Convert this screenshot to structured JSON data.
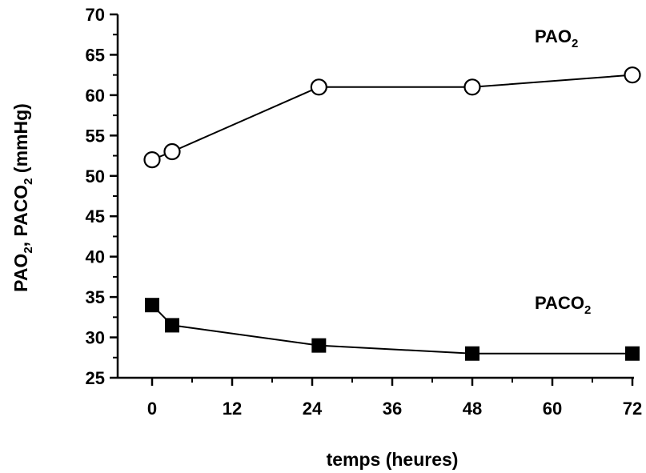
{
  "chart_data": {
    "type": "line",
    "title": "",
    "xlabel": "temps (heures)",
    "ylabel_parts": [
      "PAO",
      "2",
      ", PACO",
      "2",
      " (mmHg)"
    ],
    "x_ticks": [
      0,
      12,
      24,
      36,
      48,
      60,
      72
    ],
    "y_ticks": [
      25,
      30,
      35,
      40,
      45,
      50,
      55,
      60,
      65,
      70
    ],
    "xlim": [
      0,
      72
    ],
    "ylim": [
      25,
      70
    ],
    "grid": false,
    "series": [
      {
        "name_parts": [
          "PAO",
          "2"
        ],
        "marker": "open-circle",
        "color": "#000000",
        "x": [
          0,
          3,
          25,
          48,
          72
        ],
        "y": [
          52,
          53,
          61,
          61,
          62.5
        ]
      },
      {
        "name_parts": [
          "PACO",
          "2"
        ],
        "marker": "filled-square",
        "color": "#000000",
        "x": [
          0,
          3,
          25,
          48,
          72
        ],
        "y": [
          34,
          31.5,
          29,
          28,
          28
        ]
      }
    ]
  }
}
